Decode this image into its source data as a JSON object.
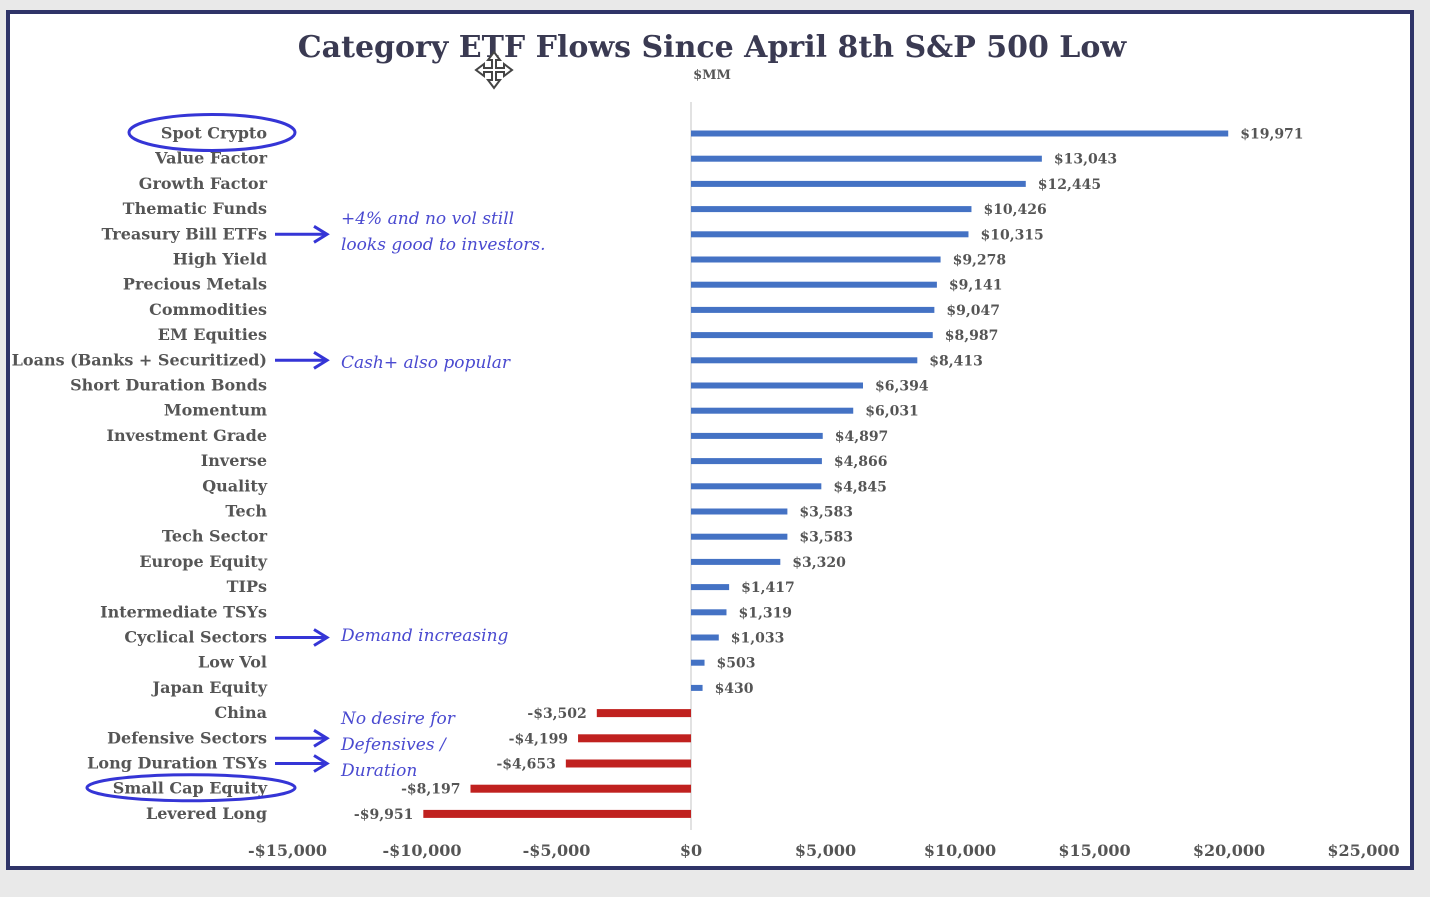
{
  "chart_data": {
    "type": "bar",
    "orientation": "horizontal",
    "title": "Category ETF Flows Since April 8th S&P 500 Low",
    "subtitle": "$MM",
    "categories": [
      "Spot Crypto",
      "Value Factor",
      "Growth Factor",
      "Thematic Funds",
      "Treasury Bill ETFs",
      "High Yield",
      "Precious Metals",
      "Commodities",
      "EM Equities",
      "Loans (Banks + Securitized)",
      "Short Duration Bonds",
      "Momentum",
      "Investment Grade",
      "Inverse",
      "Quality",
      "Tech",
      "Tech Sector",
      "Europe Equity",
      "TIPs",
      "Intermediate TSYs",
      "Cyclical Sectors",
      "Low Vol",
      "Japan Equity",
      "China",
      "Defensive Sectors",
      "Long Duration TSYs",
      "Small Cap Equity",
      "Levered Long"
    ],
    "values": [
      19971,
      13043,
      12445,
      10426,
      10315,
      9278,
      9141,
      9047,
      8987,
      8413,
      6394,
      6031,
      4897,
      4866,
      4845,
      3583,
      3583,
      3320,
      1417,
      1319,
      1033,
      503,
      430,
      -3502,
      -4199,
      -4653,
      -8197,
      -9951
    ],
    "value_labels": [
      "$19,971",
      "$13,043",
      "$12,445",
      "$10,426",
      "$10,315",
      "$9,278",
      "$9,141",
      "$9,047",
      "$8,987",
      "$8,413",
      "$6,394",
      "$6,031",
      "$4,897",
      "$4,866",
      "$4,845",
      "$3,583",
      "$3,583",
      "$3,320",
      "$1,417",
      "$1,319",
      "$1,033",
      "$503",
      "$430",
      "-$3,502",
      "-$4,199",
      "-$4,653",
      "-$8,197",
      "-$9,951"
    ],
    "xlim": [
      -15000,
      25000
    ],
    "xticks": [
      -15000,
      -10000,
      -5000,
      0,
      5000,
      10000,
      15000,
      20000,
      25000
    ],
    "xtick_labels": [
      "-$15,000",
      "-$10,000",
      "-$5,000",
      "$0",
      "$5,000",
      "$10,000",
      "$15,000",
      "$20,000",
      "$25,000"
    ],
    "colors": {
      "positive": "#4472c4",
      "negative": "#c0211f",
      "annotation": "#3535d6"
    },
    "annotations": [
      {
        "lines": [
          "+4% and no vol still",
          "looks good to investors."
        ],
        "points_to": [
          "Treasury Bill ETFs"
        ]
      },
      {
        "lines": [
          "Cash+ also popular"
        ],
        "points_to": [
          "Loans (Banks + Securitized)"
        ]
      },
      {
        "lines": [
          "Demand increasing"
        ],
        "points_to": [
          "Cyclical Sectors"
        ]
      },
      {
        "lines": [
          "No desire for",
          "Defensives /",
          "Duration"
        ],
        "points_to": [
          "Defensive Sectors",
          "Long Duration TSYs"
        ]
      }
    ],
    "circled": [
      "Spot Crypto",
      "Small Cap Equity"
    ]
  }
}
